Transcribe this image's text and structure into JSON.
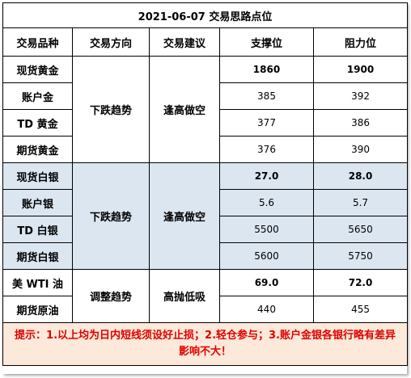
{
  "title": "2021-06-07 交易思路点位",
  "headers": [
    "交易品种",
    "交易方向",
    "交易建议",
    "支撑位",
    "阻力位"
  ],
  "groups": [
    {
      "direction": "下跌趋势",
      "advice": "逢高做空",
      "rows": [
        {
          "product": "现货黄金",
          "support": "1860",
          "resistance": "1900"
        },
        {
          "product": "账户金",
          "support": "385",
          "resistance": "392"
        },
        {
          "product": "TD 黄金",
          "support": "377",
          "resistance": "386"
        },
        {
          "product": "期货黄金",
          "support": "376",
          "resistance": "390"
        }
      ]
    },
    {
      "direction": "下跌趋势",
      "advice": "逢高做空",
      "rows": [
        {
          "product": "现货白银",
          "support": "27.0",
          "resistance": "28.0"
        },
        {
          "product": "账户银",
          "support": "5.6",
          "resistance": "5.7"
        },
        {
          "product": "TD 白银",
          "support": "5500",
          "resistance": "5650"
        },
        {
          "product": "期货白银",
          "support": "5600",
          "resistance": "5750"
        }
      ]
    },
    {
      "direction": "调整趋势",
      "advice": "高抛低吸",
      "rows": [
        {
          "product": "美 WTI 油",
          "support": "69.0",
          "resistance": "72.0"
        },
        {
          "product": "期货原油",
          "support": "440",
          "resistance": "455"
        }
      ]
    }
  ],
  "note": "提示：1.以上均为日内短线须设好止损；2.轻仓参与；3.账户金银各银行略有差异影响不大！",
  "colors": {
    "shade": "#dce6f1",
    "note_bg": "#fde9d9",
    "note_text": "#e00000"
  }
}
